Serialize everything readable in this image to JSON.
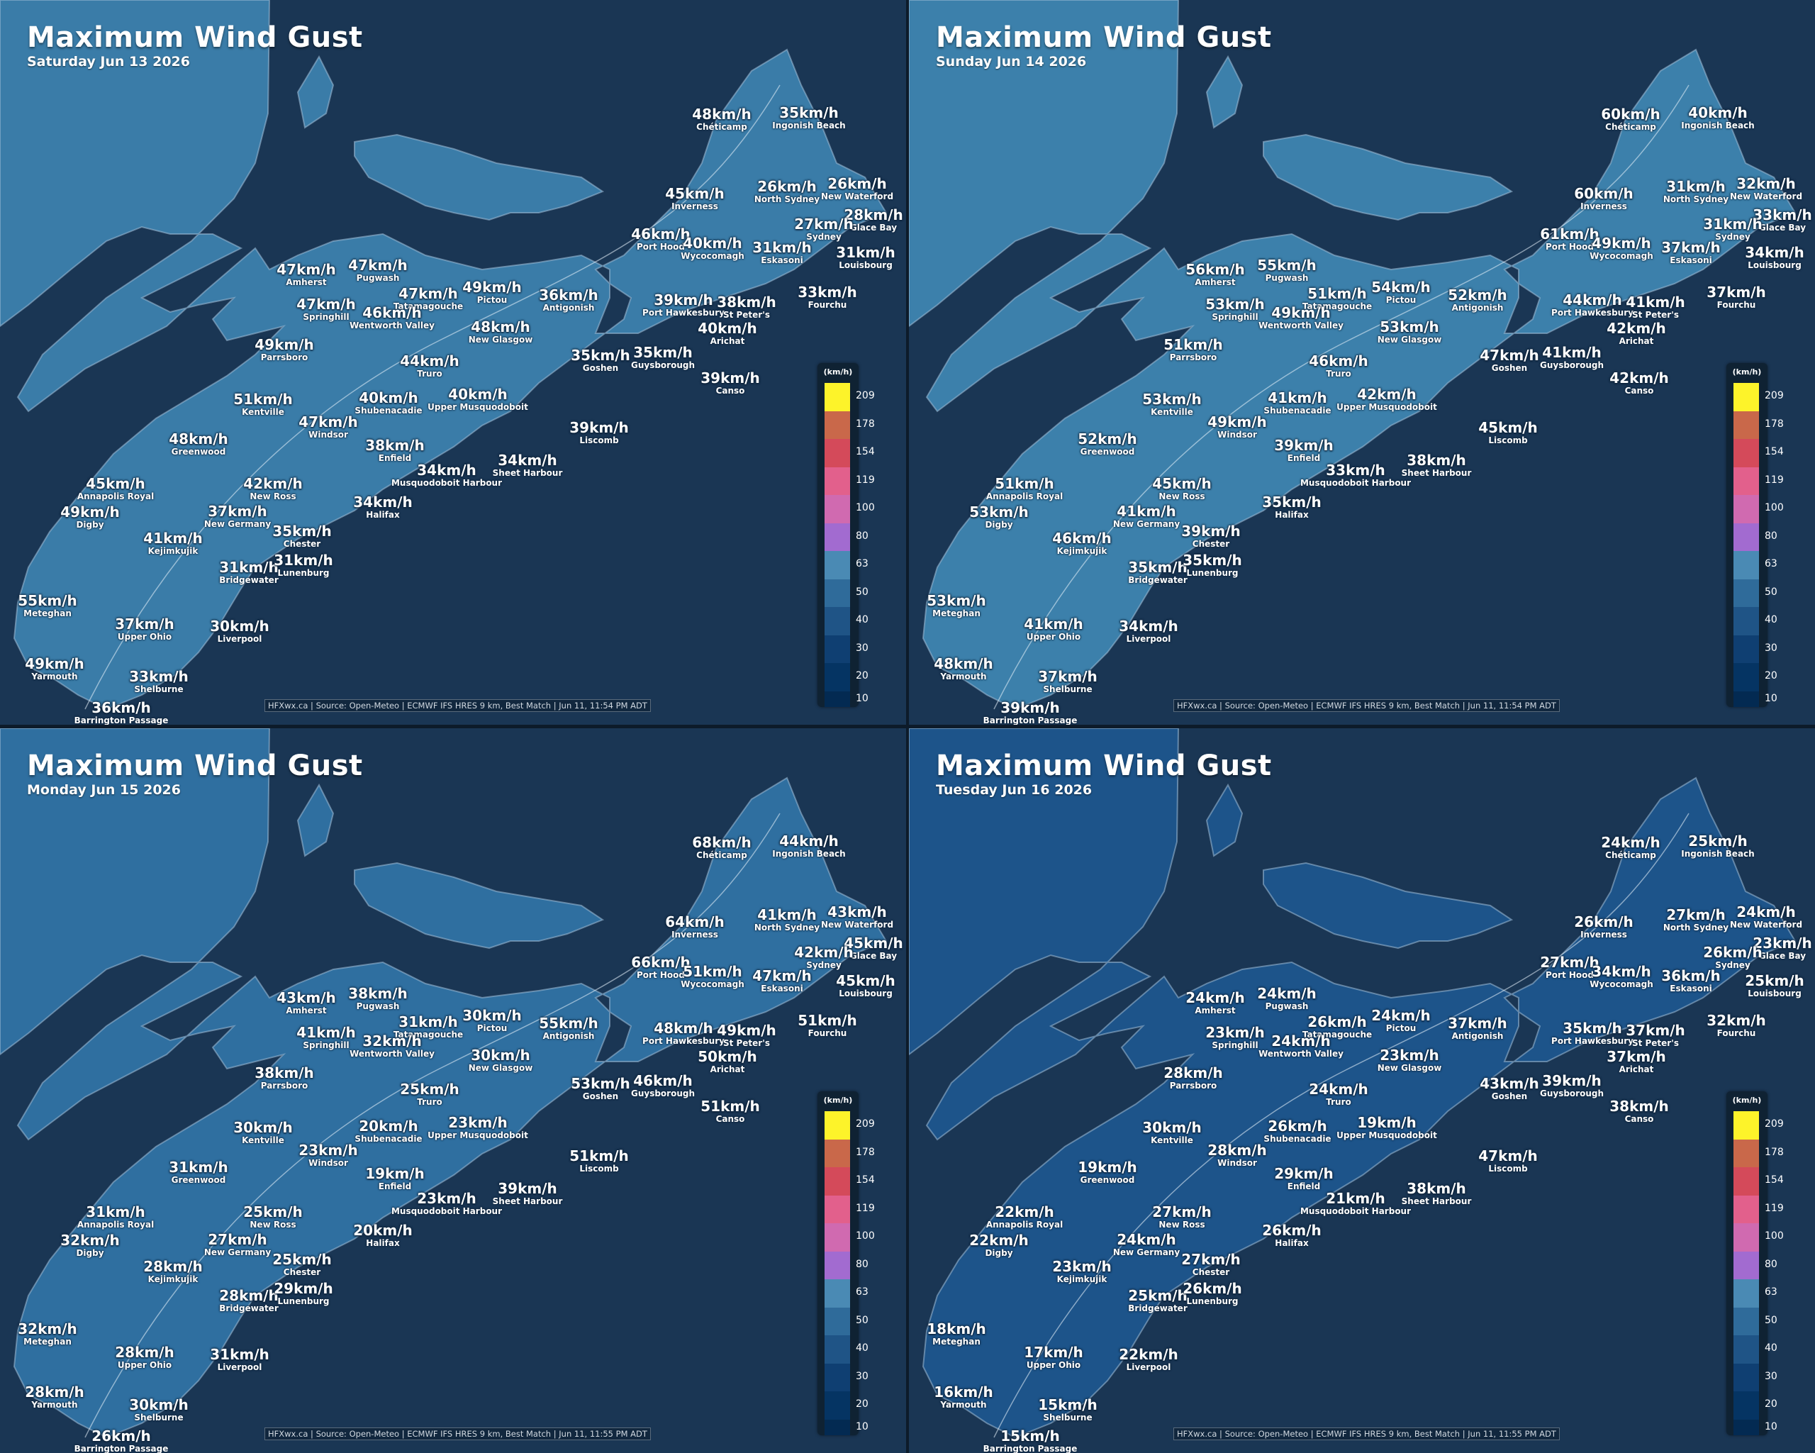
{
  "title": "Maximum Wind Gust",
  "legend": {
    "unit": "(km/h)",
    "entries": [
      {
        "value": "209",
        "color": "#fdf32a"
      },
      {
        "value": "178",
        "color": "#c9684a"
      },
      {
        "value": "154",
        "color": "#d44a5a"
      },
      {
        "value": "119",
        "color": "#e2608c"
      },
      {
        "value": "100",
        "color": "#d06ab0"
      },
      {
        "value": "80",
        "color": "#a26bd0"
      },
      {
        "value": "63",
        "color": "#4a8ab4"
      },
      {
        "value": "50",
        "color": "#2f6b9a"
      },
      {
        "value": "40",
        "color": "#1f5486"
      },
      {
        "value": "30",
        "color": "#0f3f72"
      },
      {
        "value": "20",
        "color": "#053463"
      },
      {
        "value": "10",
        "color": "#032a52"
      }
    ]
  },
  "panels": [
    {
      "date": "Saturday Jun 13 2026",
      "source": "HFXwx.ca | Source: Open-Meteo | ECMWF IFS HRES 9 km, Best Match | Jun 11, 11:54 PM ADT",
      "land_color": "#3a7ca8",
      "labels": [
        {
          "v": "48km/h",
          "n": "Chéticamp"
        },
        {
          "v": "35km/h",
          "n": "Ingonish Beach"
        },
        {
          "v": "45km/h",
          "n": "Inverness"
        },
        {
          "v": "26km/h",
          "n": "North Sydney"
        },
        {
          "v": "26km/h",
          "n": "New Waterford"
        },
        {
          "v": "28km/h",
          "n": "Glace Bay"
        },
        {
          "v": "27km/h",
          "n": "Sydney"
        },
        {
          "v": "46km/h",
          "n": "Port Hood"
        },
        {
          "v": "40km/h",
          "n": "Wycocomagh"
        },
        {
          "v": "31km/h",
          "n": "Eskasoni"
        },
        {
          "v": "31km/h",
          "n": "Louisbourg"
        },
        {
          "v": "47km/h",
          "n": "Amherst"
        },
        {
          "v": "47km/h",
          "n": "Pugwash"
        },
        {
          "v": "47km/h",
          "n": "Tatamagouche"
        },
        {
          "v": "49km/h",
          "n": "Pictou"
        },
        {
          "v": "36km/h",
          "n": "Antigonish"
        },
        {
          "v": "33km/h",
          "n": "Fourchu"
        },
        {
          "v": "47km/h",
          "n": "Springhill"
        },
        {
          "v": "46km/h",
          "n": "Wentworth Valley"
        },
        {
          "v": "39km/h",
          "n": "Port Hawkesbury"
        },
        {
          "v": "38km/h",
          "n": "St Peter's"
        },
        {
          "v": "48km/h",
          "n": "New Glasgow"
        },
        {
          "v": "40km/h",
          "n": "Arichat"
        },
        {
          "v": "49km/h",
          "n": "Parrsboro"
        },
        {
          "v": "44km/h",
          "n": "Truro"
        },
        {
          "v": "35km/h",
          "n": "Goshen"
        },
        {
          "v": "35km/h",
          "n": "Guysborough"
        },
        {
          "v": "39km/h",
          "n": "Canso"
        },
        {
          "v": "51km/h",
          "n": "Kentville"
        },
        {
          "v": "40km/h",
          "n": "Shubenacadie"
        },
        {
          "v": "40km/h",
          "n": "Upper Musquodoboit"
        },
        {
          "v": "47km/h",
          "n": "Windsor"
        },
        {
          "v": "48km/h",
          "n": "Greenwood"
        },
        {
          "v": "38km/h",
          "n": "Enfield"
        },
        {
          "v": "39km/h",
          "n": "Liscomb"
        },
        {
          "v": "34km/h",
          "n": "Sheet Harbour"
        },
        {
          "v": "34km/h",
          "n": "Musquodoboit Harbour"
        },
        {
          "v": "45km/h",
          "n": "Annapolis Royal"
        },
        {
          "v": "42km/h",
          "n": "New Ross"
        },
        {
          "v": "49km/h",
          "n": "Digby"
        },
        {
          "v": "37km/h",
          "n": "New Germany"
        },
        {
          "v": "34km/h",
          "n": "Halifax"
        },
        {
          "v": "35km/h",
          "n": "Chester"
        },
        {
          "v": "41km/h",
          "n": "Kejimkujik"
        },
        {
          "v": "31km/h",
          "n": "Bridgewater"
        },
        {
          "v": "31km/h",
          "n": "Lunenburg"
        },
        {
          "v": "55km/h",
          "n": "Meteghan"
        },
        {
          "v": "37km/h",
          "n": "Upper Ohio"
        },
        {
          "v": "30km/h",
          "n": "Liverpool"
        },
        {
          "v": "49km/h",
          "n": "Yarmouth"
        },
        {
          "v": "33km/h",
          "n": "Shelburne"
        },
        {
          "v": "36km/h",
          "n": "Barrington Passage"
        }
      ]
    },
    {
      "date": "Sunday Jun 14 2026",
      "source": "HFXwx.ca | Source: Open-Meteo | ECMWF IFS HRES 9 km, Best Match | Jun 11, 11:54 PM ADT",
      "land_color": "#3c80ab",
      "labels": [
        {
          "v": "60km/h",
          "n": "Chéticamp"
        },
        {
          "v": "40km/h",
          "n": "Ingonish Beach"
        },
        {
          "v": "60km/h",
          "n": "Inverness"
        },
        {
          "v": "31km/h",
          "n": "North Sydney"
        },
        {
          "v": "32km/h",
          "n": "New Waterford"
        },
        {
          "v": "33km/h",
          "n": "Glace Bay"
        },
        {
          "v": "31km/h",
          "n": "Sydney"
        },
        {
          "v": "61km/h",
          "n": "Port Hood"
        },
        {
          "v": "49km/h",
          "n": "Wycocomagh"
        },
        {
          "v": "37km/h",
          "n": "Eskasoni"
        },
        {
          "v": "34km/h",
          "n": "Louisbourg"
        },
        {
          "v": "56km/h",
          "n": "Amherst"
        },
        {
          "v": "55km/h",
          "n": "Pugwash"
        },
        {
          "v": "51km/h",
          "n": "Tatamagouche"
        },
        {
          "v": "54km/h",
          "n": "Pictou"
        },
        {
          "v": "52km/h",
          "n": "Antigonish"
        },
        {
          "v": "37km/h",
          "n": "Fourchu"
        },
        {
          "v": "53km/h",
          "n": "Springhill"
        },
        {
          "v": "49km/h",
          "n": "Wentworth Valley"
        },
        {
          "v": "44km/h",
          "n": "Port Hawkesbury"
        },
        {
          "v": "41km/h",
          "n": "St Peter's"
        },
        {
          "v": "53km/h",
          "n": "New Glasgow"
        },
        {
          "v": "42km/h",
          "n": "Arichat"
        },
        {
          "v": "51km/h",
          "n": "Parrsboro"
        },
        {
          "v": "46km/h",
          "n": "Truro"
        },
        {
          "v": "47km/h",
          "n": "Goshen"
        },
        {
          "v": "41km/h",
          "n": "Guysborough"
        },
        {
          "v": "42km/h",
          "n": "Canso"
        },
        {
          "v": "53km/h",
          "n": "Kentville"
        },
        {
          "v": "41km/h",
          "n": "Shubenacadie"
        },
        {
          "v": "42km/h",
          "n": "Upper Musquodoboit"
        },
        {
          "v": "49km/h",
          "n": "Windsor"
        },
        {
          "v": "52km/h",
          "n": "Greenwood"
        },
        {
          "v": "39km/h",
          "n": "Enfield"
        },
        {
          "v": "45km/h",
          "n": "Liscomb"
        },
        {
          "v": "38km/h",
          "n": "Sheet Harbour"
        },
        {
          "v": "33km/h",
          "n": "Musquodoboit Harbour"
        },
        {
          "v": "51km/h",
          "n": "Annapolis Royal"
        },
        {
          "v": "45km/h",
          "n": "New Ross"
        },
        {
          "v": "53km/h",
          "n": "Digby"
        },
        {
          "v": "41km/h",
          "n": "New Germany"
        },
        {
          "v": "35km/h",
          "n": "Halifax"
        },
        {
          "v": "39km/h",
          "n": "Chester"
        },
        {
          "v": "46km/h",
          "n": "Kejimkujik"
        },
        {
          "v": "35km/h",
          "n": "Bridgewater"
        },
        {
          "v": "35km/h",
          "n": "Lunenburg"
        },
        {
          "v": "53km/h",
          "n": "Meteghan"
        },
        {
          "v": "41km/h",
          "n": "Upper Ohio"
        },
        {
          "v": "34km/h",
          "n": "Liverpool"
        },
        {
          "v": "48km/h",
          "n": "Yarmouth"
        },
        {
          "v": "37km/h",
          "n": "Shelburne"
        },
        {
          "v": "39km/h",
          "n": "Barrington Passage"
        }
      ]
    },
    {
      "date": "Monday Jun 15 2026",
      "source": "HFXwx.ca | Source: Open-Meteo | ECMWF IFS HRES 9 km, Best Match | Jun 11, 11:55 PM ADT",
      "land_color": "#2f6fa0",
      "labels": [
        {
          "v": "68km/h",
          "n": "Chéticamp"
        },
        {
          "v": "44km/h",
          "n": "Ingonish Beach"
        },
        {
          "v": "64km/h",
          "n": "Inverness"
        },
        {
          "v": "41km/h",
          "n": "North Sydney"
        },
        {
          "v": "43km/h",
          "n": "New Waterford"
        },
        {
          "v": "45km/h",
          "n": "Glace Bay"
        },
        {
          "v": "42km/h",
          "n": "Sydney"
        },
        {
          "v": "66km/h",
          "n": "Port Hood"
        },
        {
          "v": "51km/h",
          "n": "Wycocomagh"
        },
        {
          "v": "47km/h",
          "n": "Eskasoni"
        },
        {
          "v": "45km/h",
          "n": "Louisbourg"
        },
        {
          "v": "43km/h",
          "n": "Amherst"
        },
        {
          "v": "38km/h",
          "n": "Pugwash"
        },
        {
          "v": "31km/h",
          "n": "Tatamagouche"
        },
        {
          "v": "30km/h",
          "n": "Pictou"
        },
        {
          "v": "55km/h",
          "n": "Antigonish"
        },
        {
          "v": "51km/h",
          "n": "Fourchu"
        },
        {
          "v": "41km/h",
          "n": "Springhill"
        },
        {
          "v": "32km/h",
          "n": "Wentworth Valley"
        },
        {
          "v": "48km/h",
          "n": "Port Hawkesbury"
        },
        {
          "v": "49km/h",
          "n": "St Peter's"
        },
        {
          "v": "30km/h",
          "n": "New Glasgow"
        },
        {
          "v": "50km/h",
          "n": "Arichat"
        },
        {
          "v": "38km/h",
          "n": "Parrsboro"
        },
        {
          "v": "25km/h",
          "n": "Truro"
        },
        {
          "v": "53km/h",
          "n": "Goshen"
        },
        {
          "v": "46km/h",
          "n": "Guysborough"
        },
        {
          "v": "51km/h",
          "n": "Canso"
        },
        {
          "v": "30km/h",
          "n": "Kentville"
        },
        {
          "v": "20km/h",
          "n": "Shubenacadie"
        },
        {
          "v": "23km/h",
          "n": "Upper Musquodoboit"
        },
        {
          "v": "23km/h",
          "n": "Windsor"
        },
        {
          "v": "31km/h",
          "n": "Greenwood"
        },
        {
          "v": "19km/h",
          "n": "Enfield"
        },
        {
          "v": "51km/h",
          "n": "Liscomb"
        },
        {
          "v": "39km/h",
          "n": "Sheet Harbour"
        },
        {
          "v": "23km/h",
          "n": "Musquodoboit Harbour"
        },
        {
          "v": "31km/h",
          "n": "Annapolis Royal"
        },
        {
          "v": "25km/h",
          "n": "New Ross"
        },
        {
          "v": "32km/h",
          "n": "Digby"
        },
        {
          "v": "27km/h",
          "n": "New Germany"
        },
        {
          "v": "20km/h",
          "n": "Halifax"
        },
        {
          "v": "25km/h",
          "n": "Chester"
        },
        {
          "v": "28km/h",
          "n": "Kejimkujik"
        },
        {
          "v": "28km/h",
          "n": "Bridgewater"
        },
        {
          "v": "29km/h",
          "n": "Lunenburg"
        },
        {
          "v": "32km/h",
          "n": "Meteghan"
        },
        {
          "v": "28km/h",
          "n": "Upper Ohio"
        },
        {
          "v": "31km/h",
          "n": "Liverpool"
        },
        {
          "v": "28km/h",
          "n": "Yarmouth"
        },
        {
          "v": "30km/h",
          "n": "Shelburne"
        },
        {
          "v": "26km/h",
          "n": "Barrington Passage"
        }
      ]
    },
    {
      "date": "Tuesday Jun 16 2026",
      "source": "HFXwx.ca | Source: Open-Meteo | ECMWF IFS HRES 9 km, Best Match | Jun 11, 11:55 PM ADT",
      "land_color": "#1d548a",
      "labels": [
        {
          "v": "24km/h",
          "n": "Chéticamp"
        },
        {
          "v": "25km/h",
          "n": "Ingonish Beach"
        },
        {
          "v": "26km/h",
          "n": "Inverness"
        },
        {
          "v": "27km/h",
          "n": "North Sydney"
        },
        {
          "v": "24km/h",
          "n": "New Waterford"
        },
        {
          "v": "23km/h",
          "n": "Glace Bay"
        },
        {
          "v": "26km/h",
          "n": "Sydney"
        },
        {
          "v": "27km/h",
          "n": "Port Hood"
        },
        {
          "v": "34km/h",
          "n": "Wycocomagh"
        },
        {
          "v": "36km/h",
          "n": "Eskasoni"
        },
        {
          "v": "25km/h",
          "n": "Louisbourg"
        },
        {
          "v": "24km/h",
          "n": "Amherst"
        },
        {
          "v": "24km/h",
          "n": "Pugwash"
        },
        {
          "v": "26km/h",
          "n": "Tatamagouche"
        },
        {
          "v": "24km/h",
          "n": "Pictou"
        },
        {
          "v": "37km/h",
          "n": "Antigonish"
        },
        {
          "v": "32km/h",
          "n": "Fourchu"
        },
        {
          "v": "23km/h",
          "n": "Springhill"
        },
        {
          "v": "24km/h",
          "n": "Wentworth Valley"
        },
        {
          "v": "35km/h",
          "n": "Port Hawkesbury"
        },
        {
          "v": "37km/h",
          "n": "St Peter's"
        },
        {
          "v": "23km/h",
          "n": "New Glasgow"
        },
        {
          "v": "37km/h",
          "n": "Arichat"
        },
        {
          "v": "28km/h",
          "n": "Parrsboro"
        },
        {
          "v": "24km/h",
          "n": "Truro"
        },
        {
          "v": "43km/h",
          "n": "Goshen"
        },
        {
          "v": "39km/h",
          "n": "Guysborough"
        },
        {
          "v": "38km/h",
          "n": "Canso"
        },
        {
          "v": "30km/h",
          "n": "Kentville"
        },
        {
          "v": "26km/h",
          "n": "Shubenacadie"
        },
        {
          "v": "19km/h",
          "n": "Upper Musquodoboit"
        },
        {
          "v": "28km/h",
          "n": "Windsor"
        },
        {
          "v": "19km/h",
          "n": "Greenwood"
        },
        {
          "v": "29km/h",
          "n": "Enfield"
        },
        {
          "v": "47km/h",
          "n": "Liscomb"
        },
        {
          "v": "38km/h",
          "n": "Sheet Harbour"
        },
        {
          "v": "21km/h",
          "n": "Musquodoboit Harbour"
        },
        {
          "v": "22km/h",
          "n": "Annapolis Royal"
        },
        {
          "v": "27km/h",
          "n": "New Ross"
        },
        {
          "v": "22km/h",
          "n": "Digby"
        },
        {
          "v": "24km/h",
          "n": "New Germany"
        },
        {
          "v": "26km/h",
          "n": "Halifax"
        },
        {
          "v": "27km/h",
          "n": "Chester"
        },
        {
          "v": "23km/h",
          "n": "Kejimkujik"
        },
        {
          "v": "25km/h",
          "n": "Bridgewater"
        },
        {
          "v": "26km/h",
          "n": "Lunenburg"
        },
        {
          "v": "18km/h",
          "n": "Meteghan"
        },
        {
          "v": "17km/h",
          "n": "Upper Ohio"
        },
        {
          "v": "22km/h",
          "n": "Liverpool"
        },
        {
          "v": "16km/h",
          "n": "Yarmouth"
        },
        {
          "v": "15km/h",
          "n": "Shelburne"
        },
        {
          "v": "15km/h",
          "n": "Barrington Passage"
        }
      ]
    }
  ]
}
